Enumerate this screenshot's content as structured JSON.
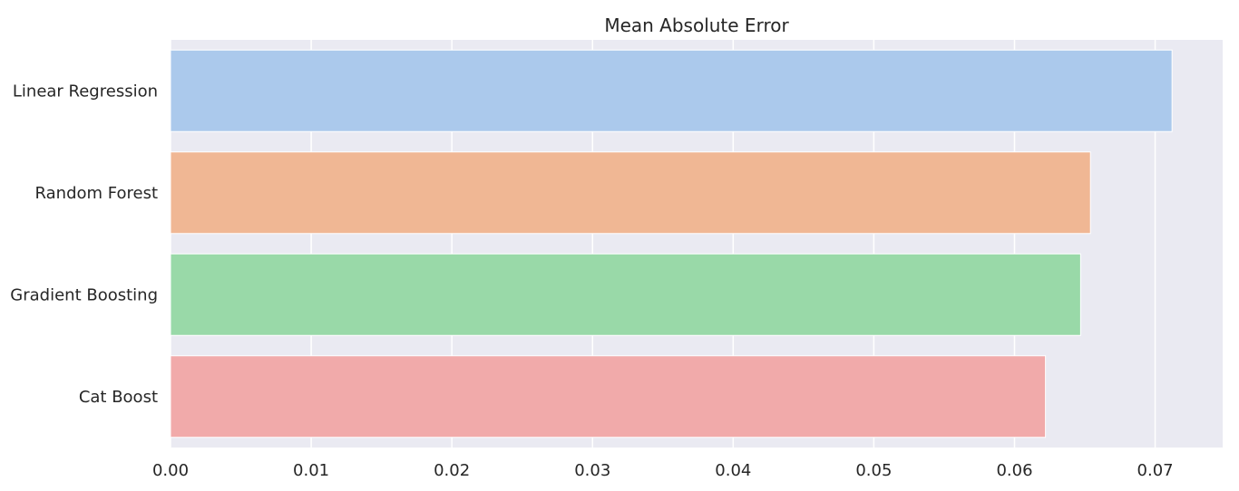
{
  "chart_data": {
    "type": "bar",
    "orientation": "horizontal",
    "title": "Mean Absolute Error",
    "xlabel": "",
    "ylabel": "",
    "categories": [
      "Linear Regression",
      "Random Forest",
      "Gradient Boosting",
      "Cat Boost"
    ],
    "values": [
      0.0712,
      0.0654,
      0.0647,
      0.0622
    ],
    "colors": [
      "#abc9ec",
      "#f0b794",
      "#99d9a8",
      "#f1aaaa"
    ],
    "xlim": [
      0,
      0.0748
    ],
    "xticks": [
      0.0,
      0.01,
      0.02,
      0.03,
      0.04,
      0.05,
      0.06,
      0.07
    ],
    "xtick_labels": [
      "0.00",
      "0.01",
      "0.02",
      "0.03",
      "0.04",
      "0.05",
      "0.06",
      "0.07"
    ],
    "grid": true,
    "background": "#eaeaf2",
    "grid_color": "#ffffff"
  }
}
